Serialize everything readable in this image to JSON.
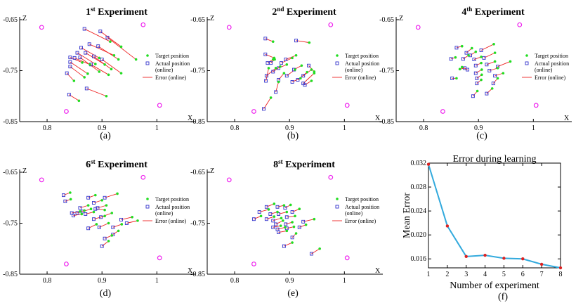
{
  "figure_captions": [
    "(a)",
    "(b)",
    "(c)",
    "(d)",
    "(e)",
    "(f)"
  ],
  "colors": {
    "target": "#22dd22",
    "actual": "#3333cc",
    "error": "#ee2222",
    "reference": "#ee22ee",
    "curve": "#33aadd",
    "curve_points": "#dd2222"
  },
  "legend": {
    "target": "Target position",
    "actual_1": "Actual position",
    "actual_2": "(online)",
    "error": "Error (online)"
  },
  "chart_data": [
    {
      "type": "scatter",
      "title": {
        "number": "1",
        "superscript": "st",
        "word": "Experiment"
      },
      "xlabel": "X",
      "ylabel": "Z",
      "xlim": [
        0.75,
        1.07
      ],
      "ylim": [
        -0.85,
        -0.65
      ],
      "xticks": [
        "0.8",
        "0.9",
        "1"
      ],
      "yticks": [
        "-0.65",
        "-0.75",
        "-0.85"
      ],
      "caption": "(a)",
      "reference_points": [
        [
          0.79,
          -0.665
        ],
        [
          0.975,
          -0.66
        ],
        [
          0.835,
          -0.83
        ],
        [
          1.005,
          -0.818
        ]
      ],
      "pairs": [
        [
          0.842,
          -0.724,
          0.864,
          -0.734
        ],
        [
          0.842,
          -0.733,
          0.874,
          -0.756
        ],
        [
          0.842,
          -0.742,
          0.868,
          -0.763
        ],
        [
          0.836,
          -0.755,
          0.849,
          -0.77
        ],
        [
          0.85,
          -0.725,
          0.878,
          -0.738
        ],
        [
          0.855,
          -0.715,
          0.888,
          -0.737
        ],
        [
          0.862,
          -0.705,
          0.895,
          -0.725
        ],
        [
          0.87,
          -0.715,
          0.905,
          -0.738
        ],
        [
          0.86,
          -0.724,
          0.895,
          -0.752
        ],
        [
          0.877,
          -0.698,
          0.922,
          -0.72
        ],
        [
          0.893,
          -0.702,
          0.93,
          -0.728
        ],
        [
          0.885,
          -0.722,
          0.917,
          -0.747
        ],
        [
          0.868,
          -0.668,
          0.915,
          -0.693
        ],
        [
          0.897,
          -0.673,
          0.935,
          -0.703
        ],
        [
          0.91,
          -0.685,
          0.962,
          -0.728
        ],
        [
          0.88,
          -0.738,
          0.912,
          -0.758
        ],
        [
          0.9,
          -0.728,
          0.935,
          -0.755
        ],
        [
          0.84,
          -0.797,
          0.858,
          -0.809
        ],
        [
          0.872,
          -0.785,
          0.908,
          -0.8
        ]
      ]
    },
    {
      "type": "scatter",
      "title": {
        "number": "2",
        "superscript": "nd",
        "word": "Experiment"
      },
      "xlabel": "X",
      "ylabel": "Z",
      "xlim": [
        0.75,
        1.07
      ],
      "ylim": [
        -0.85,
        -0.65
      ],
      "xticks": [
        "0.8",
        "0.9",
        "1"
      ],
      "yticks": [
        "-0.65",
        "-0.75",
        "-0.85"
      ],
      "caption": "(b)",
      "reference_points": [
        [
          0.79,
          -0.665
        ],
        [
          0.975,
          -0.66
        ],
        [
          0.835,
          -0.83
        ],
        [
          1.005,
          -0.818
        ]
      ],
      "pairs": [
        [
          0.856,
          -0.687,
          0.87,
          -0.693
        ],
        [
          0.856,
          -0.718,
          0.872,
          -0.725
        ],
        [
          0.86,
          -0.735,
          0.87,
          -0.728
        ],
        [
          0.858,
          -0.76,
          0.875,
          -0.745
        ],
        [
          0.857,
          -0.77,
          0.862,
          -0.745
        ],
        [
          0.866,
          -0.735,
          0.873,
          -0.728
        ],
        [
          0.87,
          -0.752,
          0.883,
          -0.742
        ],
        [
          0.88,
          -0.745,
          0.895,
          -0.738
        ],
        [
          0.885,
          -0.735,
          0.905,
          -0.725
        ],
        [
          0.893,
          -0.728,
          0.912,
          -0.72
        ],
        [
          0.88,
          -0.768,
          0.89,
          -0.755
        ],
        [
          0.895,
          -0.76,
          0.91,
          -0.748
        ],
        [
          0.908,
          -0.748,
          0.922,
          -0.74
        ],
        [
          0.905,
          -0.772,
          0.92,
          -0.765
        ],
        [
          0.915,
          -0.768,
          0.932,
          -0.753
        ],
        [
          0.925,
          -0.76,
          0.94,
          -0.748
        ],
        [
          0.925,
          -0.775,
          0.945,
          -0.755
        ],
        [
          0.928,
          -0.778,
          0.94,
          -0.77
        ],
        [
          0.912,
          -0.691,
          0.936,
          -0.695
        ],
        [
          0.853,
          -0.825,
          0.866,
          -0.803
        ],
        [
          0.875,
          -0.792,
          0.88,
          -0.772
        ],
        [
          0.935,
          -0.74,
          0.945,
          -0.752
        ]
      ]
    },
    {
      "type": "scatter",
      "title": {
        "number": "4",
        "superscript": "th",
        "word": "Experiment"
      },
      "xlabel": "X",
      "ylabel": "Z",
      "xlim": [
        0.75,
        1.07
      ],
      "ylim": [
        -0.85,
        -0.65
      ],
      "xticks": [
        "0.8",
        "0.9",
        "1"
      ],
      "yticks": [
        "-0.65",
        "-0.75",
        "-0.85"
      ],
      "caption": "(c)",
      "reference_points": [
        [
          0.79,
          -0.665
        ],
        [
          0.975,
          -0.66
        ],
        [
          0.835,
          -0.83
        ],
        [
          1.005,
          -0.818
        ]
      ],
      "pairs": [
        [
          0.86,
          -0.705,
          0.87,
          -0.702
        ],
        [
          0.85,
          -0.727,
          0.858,
          -0.724
        ],
        [
          0.872,
          -0.727,
          0.882,
          -0.72
        ],
        [
          0.878,
          -0.715,
          0.888,
          -0.706
        ],
        [
          0.885,
          -0.72,
          0.895,
          -0.713
        ],
        [
          0.875,
          -0.745,
          0.866,
          -0.747
        ],
        [
          0.88,
          -0.748,
          0.87,
          -0.743
        ],
        [
          0.892,
          -0.728,
          0.905,
          -0.723
        ],
        [
          0.895,
          -0.74,
          0.905,
          -0.735
        ],
        [
          0.895,
          -0.755,
          0.906,
          -0.748
        ],
        [
          0.897,
          -0.765,
          0.906,
          -0.758
        ],
        [
          0.897,
          -0.775,
          0.905,
          -0.768
        ],
        [
          0.905,
          -0.71,
          0.928,
          -0.698
        ],
        [
          0.91,
          -0.725,
          0.93,
          -0.715
        ],
        [
          0.915,
          -0.738,
          0.93,
          -0.732
        ],
        [
          0.92,
          -0.75,
          0.935,
          -0.745
        ],
        [
          0.935,
          -0.742,
          0.958,
          -0.732
        ],
        [
          0.93,
          -0.76,
          0.945,
          -0.755
        ],
        [
          0.927,
          -0.775,
          0.935,
          -0.765
        ],
        [
          0.852,
          -0.765,
          0.86,
          -0.765
        ],
        [
          0.89,
          -0.8,
          0.898,
          -0.79
        ],
        [
          0.915,
          -0.795,
          0.925,
          -0.785
        ]
      ]
    },
    {
      "type": "scatter",
      "title": {
        "number": "6",
        "superscript": "st",
        "word": "Experiment"
      },
      "xlabel": "X",
      "ylabel": "Z",
      "xlim": [
        0.75,
        1.07
      ],
      "ylim": [
        -0.85,
        -0.65
      ],
      "xticks": [
        "0.8",
        "0.9",
        "1"
      ],
      "yticks": [
        "-0.65",
        "-0.75",
        "-0.85"
      ],
      "caption": "(d)",
      "reference_points": [
        [
          0.79,
          -0.665
        ],
        [
          0.975,
          -0.66
        ],
        [
          0.835,
          -0.83
        ],
        [
          1.005,
          -0.818
        ]
      ],
      "pairs": [
        [
          0.83,
          -0.695,
          0.842,
          -0.69
        ],
        [
          0.833,
          -0.707,
          0.843,
          -0.703
        ],
        [
          0.845,
          -0.73,
          0.86,
          -0.727
        ],
        [
          0.848,
          -0.735,
          0.863,
          -0.732
        ],
        [
          0.855,
          -0.73,
          0.868,
          -0.725
        ],
        [
          0.86,
          -0.72,
          0.875,
          -0.715
        ],
        [
          0.865,
          -0.727,
          0.88,
          -0.722
        ],
        [
          0.87,
          -0.732,
          0.885,
          -0.728
        ],
        [
          0.875,
          -0.7,
          0.888,
          -0.695
        ],
        [
          0.885,
          -0.71,
          0.9,
          -0.705
        ],
        [
          0.892,
          -0.72,
          0.908,
          -0.715
        ],
        [
          0.885,
          -0.742,
          0.905,
          -0.736
        ],
        [
          0.898,
          -0.738,
          0.918,
          -0.73
        ],
        [
          0.905,
          -0.7,
          0.928,
          -0.692
        ],
        [
          0.875,
          -0.76,
          0.89,
          -0.752
        ],
        [
          0.895,
          -0.758,
          0.912,
          -0.75
        ],
        [
          0.935,
          -0.743,
          0.955,
          -0.738
        ],
        [
          0.945,
          -0.75,
          0.965,
          -0.745
        ],
        [
          0.92,
          -0.758,
          0.936,
          -0.752
        ],
        [
          0.92,
          -0.772,
          0.93,
          -0.765
        ],
        [
          0.905,
          -0.78,
          0.918,
          -0.774
        ],
        [
          0.9,
          -0.795,
          0.912,
          -0.785
        ],
        [
          0.888,
          -0.722,
          0.905,
          -0.724
        ]
      ]
    },
    {
      "type": "scatter",
      "title": {
        "number": "8",
        "superscript": "st",
        "word": "Experiment"
      },
      "xlabel": "X",
      "ylabel": "Z",
      "xlim": [
        0.75,
        1.07
      ],
      "ylim": [
        -0.85,
        -0.65
      ],
      "xticks": [
        "0.8",
        "0.9",
        "1"
      ],
      "yticks": [
        "-0.65",
        "-0.75",
        "-0.85"
      ],
      "caption": "(e)",
      "reference_points": [
        [
          0.79,
          -0.665
        ],
        [
          0.975,
          -0.66
        ],
        [
          0.835,
          -0.83
        ],
        [
          1.005,
          -0.818
        ]
      ],
      "pairs": [
        [
          0.835,
          -0.742,
          0.848,
          -0.736
        ],
        [
          0.845,
          -0.728,
          0.862,
          -0.723
        ],
        [
          0.858,
          -0.718,
          0.872,
          -0.712
        ],
        [
          0.858,
          -0.742,
          0.872,
          -0.737
        ],
        [
          0.865,
          -0.732,
          0.878,
          -0.728
        ],
        [
          0.87,
          -0.745,
          0.885,
          -0.74
        ],
        [
          0.875,
          -0.752,
          0.888,
          -0.745
        ],
        [
          0.878,
          -0.762,
          0.892,
          -0.758
        ],
        [
          0.87,
          -0.758,
          0.884,
          -0.755
        ],
        [
          0.88,
          -0.732,
          0.895,
          -0.728
        ],
        [
          0.892,
          -0.72,
          0.902,
          -0.714
        ],
        [
          0.878,
          -0.718,
          0.89,
          -0.715
        ],
        [
          0.895,
          -0.738,
          0.91,
          -0.736
        ],
        [
          0.905,
          -0.728,
          0.918,
          -0.722
        ],
        [
          0.893,
          -0.752,
          0.905,
          -0.748
        ],
        [
          0.895,
          -0.76,
          0.908,
          -0.757
        ],
        [
          0.918,
          -0.758,
          0.93,
          -0.753
        ],
        [
          0.925,
          -0.747,
          0.945,
          -0.742
        ],
        [
          0.88,
          -0.768,
          0.895,
          -0.765
        ],
        [
          0.905,
          -0.778,
          0.912,
          -0.77
        ],
        [
          0.89,
          -0.795,
          0.905,
          -0.788
        ],
        [
          0.94,
          -0.81,
          0.955,
          -0.8
        ]
      ]
    },
    {
      "type": "line",
      "title": "Error during learning",
      "xlabel": "Number of experiment",
      "ylabel": "Mean Error",
      "x": [
        1,
        2,
        3,
        4,
        5,
        6,
        7,
        8
      ],
      "y": [
        0.0318,
        0.0215,
        0.0164,
        0.0166,
        0.0161,
        0.016,
        0.0151,
        0.0145
      ],
      "xlim": [
        1,
        8
      ],
      "ylim": [
        0.0145,
        0.032
      ],
      "xticks": [
        "1",
        "2",
        "3",
        "4",
        "5",
        "6",
        "7",
        "8"
      ],
      "yticks": [
        "0.032",
        "0.028",
        "0.024",
        "0.020",
        "0.016"
      ],
      "ytick_values": [
        0.032,
        0.028,
        0.024,
        0.02,
        0.016
      ],
      "caption": "(f)"
    }
  ]
}
